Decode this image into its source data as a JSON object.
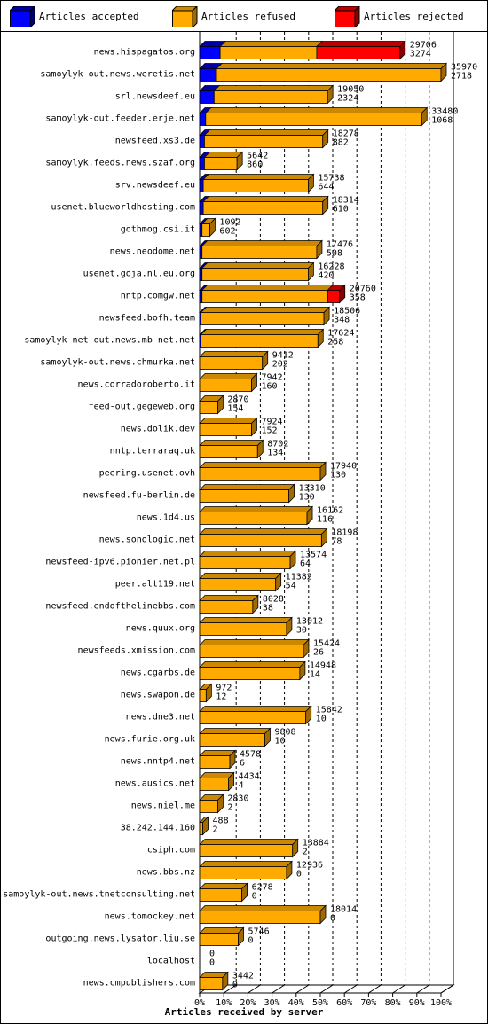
{
  "legend": [
    {
      "label": "Articles accepted",
      "color": "#0000ff"
    },
    {
      "label": "Articles refused",
      "color": "#ffaa00"
    },
    {
      "label": "Articles rejected",
      "color": "#ff0000"
    }
  ],
  "chart_data": {
    "type": "bar",
    "orientation": "horizontal",
    "stacked": true,
    "xlabel": "Articles received by server",
    "x_ticks": [
      "0%",
      "10%",
      "20%",
      "30%",
      "40%",
      "50%",
      "60%",
      "70%",
      "80%",
      "90%",
      "100%"
    ],
    "xlim": [
      0,
      100
    ],
    "grid": true,
    "legend_position": "top",
    "series": [
      {
        "name": "Articles accepted",
        "color": "#0000ff"
      },
      {
        "name": "Articles refused",
        "color": "#ffaa00"
      },
      {
        "name": "Articles rejected",
        "color": "#ff0000"
      }
    ],
    "rows": [
      {
        "server": "news.hispagatos.org",
        "total": "29706",
        "rejected_count": "3274",
        "pct": [
          8.5,
          40,
          34.5
        ]
      },
      {
        "server": "samoylyk-out.news.weretis.net",
        "total": "35970",
        "rejected_count": "2718",
        "pct": [
          7,
          93,
          0
        ]
      },
      {
        "server": "srl.newsdeef.eu",
        "total": "19050",
        "rejected_count": "2324",
        "pct": [
          6,
          47,
          0
        ]
      },
      {
        "server": "samoylyk-out.feeder.erje.net",
        "total": "33480",
        "rejected_count": "1068",
        "pct": [
          2.5,
          89.5,
          0
        ]
      },
      {
        "server": "newsfeed.xs3.de",
        "total": "18278",
        "rejected_count": "882",
        "pct": [
          2,
          49,
          0
        ]
      },
      {
        "server": "samoylyk.feeds.news.szaf.org",
        "total": "5642",
        "rejected_count": "860",
        "pct": [
          2,
          13.5,
          0
        ]
      },
      {
        "server": "srv.newsdeef.eu",
        "total": "15738",
        "rejected_count": "644",
        "pct": [
          1.5,
          43.5,
          0
        ]
      },
      {
        "server": "usenet.blueworldhosting.com",
        "total": "18314",
        "rejected_count": "610",
        "pct": [
          1.5,
          49.5,
          0
        ]
      },
      {
        "server": "gothmog.csi.it",
        "total": "1092",
        "rejected_count": "602",
        "pct": [
          1,
          3.2,
          0
        ]
      },
      {
        "server": "news.neodome.net",
        "total": "17476",
        "rejected_count": "508",
        "pct": [
          1,
          47.5,
          0
        ]
      },
      {
        "server": "usenet.goja.nl.eu.org",
        "total": "16228",
        "rejected_count": "420",
        "pct": [
          1,
          44,
          0
        ]
      },
      {
        "server": "nntp.comgw.net",
        "total": "20760",
        "rejected_count": "358",
        "pct": [
          1,
          52,
          5
        ]
      },
      {
        "server": "newsfeed.bofh.team",
        "total": "18506",
        "rejected_count": "348",
        "pct": [
          0.5,
          51,
          0
        ]
      },
      {
        "server": "samoylyk-net-out.news.mb-net.net",
        "total": "17624",
        "rejected_count": "258",
        "pct": [
          0.5,
          48.5,
          0
        ]
      },
      {
        "server": "samoylyk-out.news.chmurka.net",
        "total": "9412",
        "rejected_count": "202",
        "pct": [
          0,
          26,
          0
        ]
      },
      {
        "server": "news.corradoroberto.it",
        "total": "7942",
        "rejected_count": "160",
        "pct": [
          0,
          21.5,
          0
        ]
      },
      {
        "server": "feed-out.gegeweb.org",
        "total": "2870",
        "rejected_count": "154",
        "pct": [
          0,
          7.5,
          0
        ]
      },
      {
        "server": "news.dolik.dev",
        "total": "7924",
        "rejected_count": "152",
        "pct": [
          0,
          21.5,
          0
        ]
      },
      {
        "server": "nntp.terraraq.uk",
        "total": "8702",
        "rejected_count": "134",
        "pct": [
          0,
          24,
          0
        ]
      },
      {
        "server": "peering.usenet.ovh",
        "total": "17940",
        "rejected_count": "130",
        "pct": [
          0,
          50,
          0
        ]
      },
      {
        "server": "newsfeed.fu-berlin.de",
        "total": "13310",
        "rejected_count": "130",
        "pct": [
          0,
          37,
          0
        ]
      },
      {
        "server": "news.1d4.us",
        "total": "16162",
        "rejected_count": "116",
        "pct": [
          0,
          44.5,
          0
        ]
      },
      {
        "server": "news.sonologic.net",
        "total": "18198",
        "rejected_count": "78",
        "pct": [
          0,
          50.5,
          0
        ]
      },
      {
        "server": "newsfeed-ipv6.pionier.net.pl",
        "total": "13574",
        "rejected_count": "64",
        "pct": [
          0,
          37.5,
          0
        ]
      },
      {
        "server": "peer.alt119.net",
        "total": "11382",
        "rejected_count": "54",
        "pct": [
          0,
          31.5,
          0
        ]
      },
      {
        "server": "newsfeed.endofthelinebbs.com",
        "total": "8028",
        "rejected_count": "38",
        "pct": [
          0,
          22,
          0
        ]
      },
      {
        "server": "news.quux.org",
        "total": "13012",
        "rejected_count": "30",
        "pct": [
          0,
          36,
          0
        ]
      },
      {
        "server": "newsfeeds.xmission.com",
        "total": "15424",
        "rejected_count": "26",
        "pct": [
          0,
          43,
          0
        ]
      },
      {
        "server": "news.cgarbs.de",
        "total": "14948",
        "rejected_count": "14",
        "pct": [
          0,
          41.5,
          0
        ]
      },
      {
        "server": "news.swapon.de",
        "total": "972",
        "rejected_count": "12",
        "pct": [
          0,
          2.7,
          0
        ]
      },
      {
        "server": "news.dne3.net",
        "total": "15842",
        "rejected_count": "10",
        "pct": [
          0,
          44,
          0
        ]
      },
      {
        "server": "news.furie.org.uk",
        "total": "9808",
        "rejected_count": "10",
        "pct": [
          0,
          27,
          0
        ]
      },
      {
        "server": "news.nntp4.net",
        "total": "4578",
        "rejected_count": "6",
        "pct": [
          0,
          12.5,
          0
        ]
      },
      {
        "server": "news.ausics.net",
        "total": "4434",
        "rejected_count": "4",
        "pct": [
          0,
          12,
          0
        ]
      },
      {
        "server": "news.niel.me",
        "total": "2830",
        "rejected_count": "2",
        "pct": [
          0,
          7.5,
          0
        ]
      },
      {
        "server": "38.242.144.160",
        "total": "488",
        "rejected_count": "2",
        "pct": [
          0,
          1.3,
          0
        ]
      },
      {
        "server": "csiph.com",
        "total": "13884",
        "rejected_count": "2",
        "pct": [
          0,
          38.5,
          0
        ]
      },
      {
        "server": "news.bbs.nz",
        "total": "12936",
        "rejected_count": "0",
        "pct": [
          0,
          36,
          0
        ]
      },
      {
        "server": "samoylyk-out.news.tnetconsulting.net",
        "total": "6278",
        "rejected_count": "0",
        "pct": [
          0,
          17.5,
          0
        ]
      },
      {
        "server": "news.tomockey.net",
        "total": "18014",
        "rejected_count": "0",
        "pct": [
          0,
          50,
          0
        ]
      },
      {
        "server": "outgoing.news.lysator.liu.se",
        "total": "5746",
        "rejected_count": "0",
        "pct": [
          0,
          16,
          0
        ]
      },
      {
        "server": "localhost",
        "total": "0",
        "rejected_count": "0",
        "pct": [
          0,
          0,
          0
        ]
      },
      {
        "server": "news.cmpublishers.com",
        "total": "3442",
        "rejected_count": "0",
        "pct": [
          0,
          9.5,
          0
        ]
      }
    ]
  }
}
